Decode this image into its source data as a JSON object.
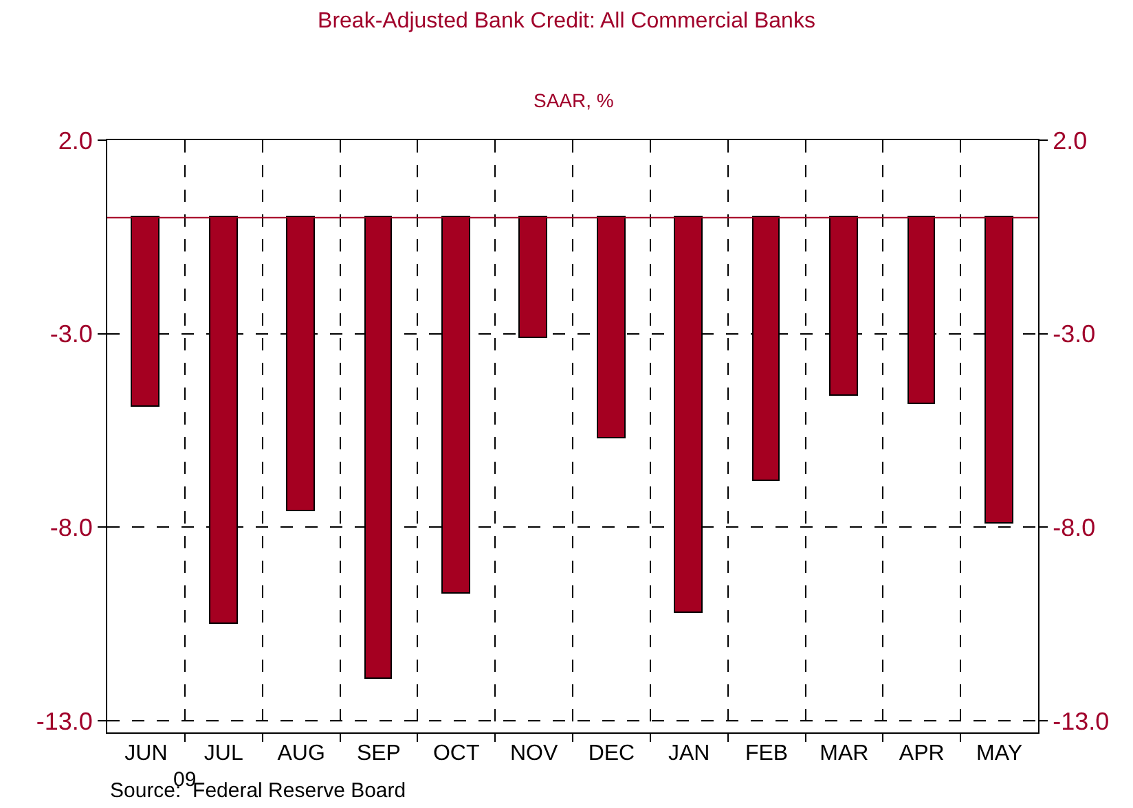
{
  "chart_data": {
    "type": "bar",
    "title": "Break-Adjusted Bank Credit: All Commercial Banks",
    "subtitle": "SAAR, %",
    "categories": [
      "JUN",
      "JUL",
      "AUG",
      "SEP",
      "OCT",
      "NOV",
      "DEC",
      "JAN",
      "FEB",
      "MAR",
      "APR",
      "MAY"
    ],
    "values": [
      -4.9,
      -10.5,
      -7.6,
      -11.9,
      -9.7,
      -3.1,
      -5.7,
      -10.2,
      -6.8,
      -4.6,
      -4.8,
      -7.9
    ],
    "color": "#a50021",
    "ylim": [
      -13.3,
      2.0
    ],
    "yticks": [
      {
        "value": 2,
        "label": "2.0"
      },
      {
        "value": -3,
        "label": "-3.0"
      },
      {
        "value": -8,
        "label": "-8.0"
      },
      {
        "value": -13,
        "label": "-13.0"
      }
    ],
    "y2lim": [
      -13.3,
      2.0
    ],
    "y2ticks": [
      {
        "value": 2,
        "label": "2.0"
      },
      {
        "value": -3,
        "label": "-3.0"
      },
      {
        "value": -8,
        "label": "-8.0"
      },
      {
        "value": -13,
        "label": "-13.0"
      }
    ],
    "ref_lines": [
      {
        "axis": "y",
        "value": 0,
        "color": "#a50021"
      }
    ],
    "grid": true,
    "annotations": [
      "09",
      "Source:  Federal Reserve Board"
    ]
  }
}
